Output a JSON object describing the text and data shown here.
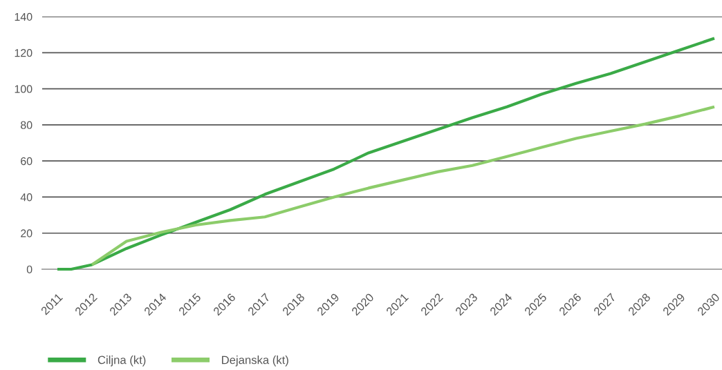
{
  "chart_data": {
    "type": "line",
    "x": [
      2011,
      2011.4,
      2012,
      2013,
      2014,
      2015,
      2016,
      2017,
      2018,
      2019,
      2020,
      2021,
      2022,
      2023,
      2024,
      2025,
      2026,
      2027,
      2028,
      2029,
      2030
    ],
    "series": [
      {
        "name": "Ciljna (kt)",
        "color": "#3aaa47",
        "values": [
          0,
          0,
          2.5,
          11.5,
          19,
          26,
          33,
          41.5,
          48.5,
          55.5,
          64.5,
          71,
          77.5,
          84,
          90,
          97,
          103,
          108.5,
          115,
          121.5,
          128
        ]
      },
      {
        "name": "Dejanska (kt)",
        "color": "#8ccc6a",
        "values": [
          null,
          null,
          2.5,
          15.5,
          20.5,
          24.5,
          27,
          29,
          34.5,
          40,
          45,
          49.5,
          54,
          57.5,
          62.5,
          67.5,
          72.5,
          76.5,
          80.5,
          85,
          90
        ]
      }
    ],
    "xlim": [
      2010.56,
      2030.22
    ],
    "xticks": [
      2011,
      2012,
      2013,
      2014,
      2015,
      2016,
      2017,
      2018,
      2019,
      2020,
      2021,
      2022,
      2023,
      2024,
      2025,
      2026,
      2027,
      2028,
      2029,
      2030
    ],
    "ylim": [
      0,
      140
    ],
    "yticks": [
      0,
      20,
      40,
      60,
      80,
      100,
      120,
      140
    ],
    "grid": "y",
    "legend": "bottom left",
    "line_style": "solid"
  }
}
